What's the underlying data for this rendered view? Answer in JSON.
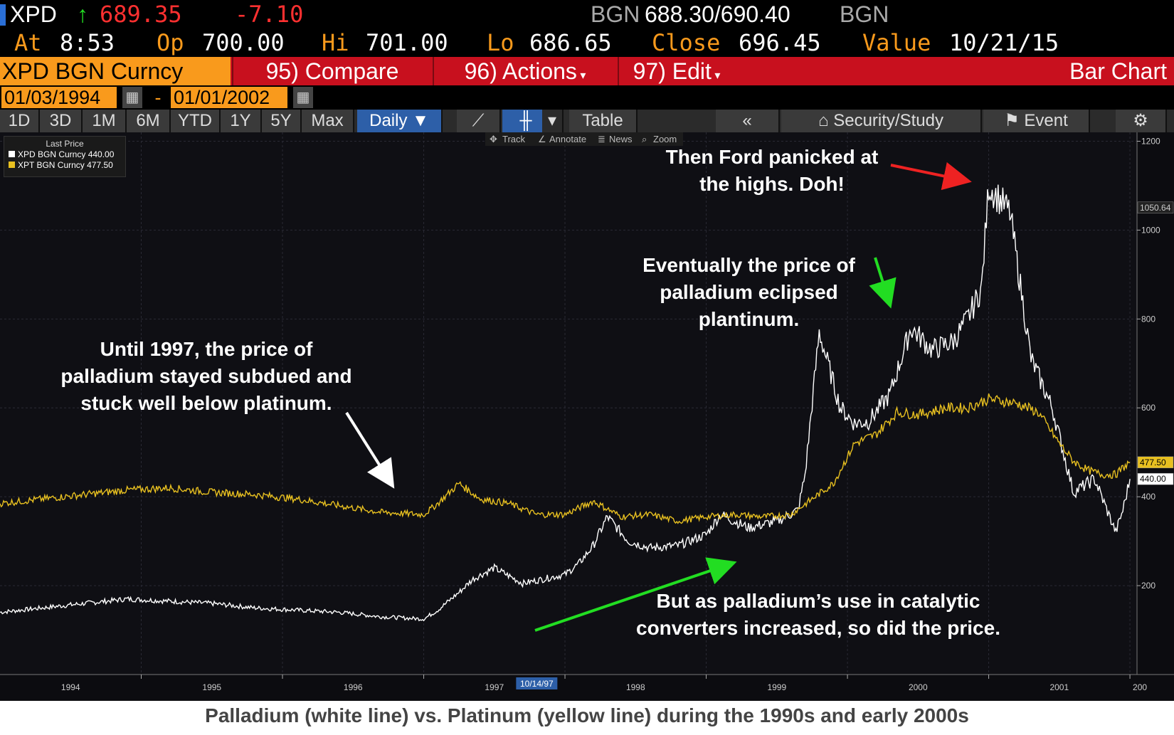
{
  "header": {
    "ticker": "XPD",
    "last_price": "689.35",
    "change": "-7.10",
    "bgn_left": "BGN",
    "bid_ask": "688.30/690.40",
    "bgn_right": "BGN",
    "at_label": "At",
    "at_value": "8:53",
    "op_label": "Op",
    "op_value": "700.00",
    "hi_label": "Hi",
    "hi_value": "701.00",
    "lo_label": "Lo",
    "lo_value": "686.65",
    "close_label": "Close",
    "close_value": "696.45",
    "value_label": "Value",
    "value_date": "10/21/15"
  },
  "toolbar": {
    "security": "XPD BGN Curncy",
    "compare": "95) Compare",
    "actions": "96) Actions",
    "edit": "97) Edit",
    "chart_type": "Bar Chart",
    "start_date": "01/03/1994",
    "date_sep": "-",
    "end_date": "01/01/2002",
    "ranges": [
      "1D",
      "3D",
      "1M",
      "6M",
      "YTD",
      "1Y",
      "5Y",
      "Max"
    ],
    "period": "Daily",
    "table": "Table",
    "security_study": "Security/Study",
    "event": "Event",
    "subtools": [
      "Track",
      "Annotate",
      "News",
      "Zoom"
    ]
  },
  "legend": {
    "title": "Last Price",
    "items": [
      {
        "label": "XPD BGN Curncy 440.00",
        "color": "#ffffff"
      },
      {
        "label": "XPT BGN Curncy 477.50",
        "color": "#e8c020"
      }
    ]
  },
  "annotations": {
    "subdued": "Until 1997, the price of palladium stayed subdued and stuck well below platinum.",
    "catalytic": "But as palladium’s use in catalytic converters increased, so did the price.",
    "eclipsed": "Eventually the price of palladium eclipsed plantinum.",
    "ford": "Then Ford panicked at the highs.  Doh!"
  },
  "caption": "Palladium (white line) vs. Platinum (yellow line) during the 1990s and early 2000s",
  "colors": {
    "palladium": "#ffffff",
    "platinum": "#e8c020",
    "arrow_white": "#ffffff",
    "arrow_green": "#22dd22",
    "arrow_red": "#ee2222"
  },
  "chart_data": {
    "type": "line",
    "title": "",
    "xlabel": "",
    "ylabel": "",
    "xlim": [
      1994.0,
      2002.05
    ],
    "ylim": [
      0,
      1220
    ],
    "y_ticks": [
      200,
      400,
      600,
      800,
      1000,
      1200
    ],
    "x_tick_labels": [
      "1994",
      "1995",
      "1996",
      "1997",
      "1998",
      "1999",
      "2000",
      "2001",
      "200"
    ],
    "cursor_date": "10/14/97",
    "price_tags": [
      {
        "value": 1050.64,
        "label": "1050.64"
      },
      {
        "value": 477.5,
        "label": "477.50"
      },
      {
        "value": 440.0,
        "label": "440.00"
      }
    ],
    "series": [
      {
        "name": "XPD BGN Curncy",
        "x": [
          1994.0,
          1994.3,
          1994.6,
          1994.9,
          1995.2,
          1995.5,
          1995.8,
          1996.1,
          1996.4,
          1996.7,
          1997.0,
          1997.1,
          1997.25,
          1997.35,
          1997.5,
          1997.7,
          1997.85,
          1998.0,
          1998.1,
          1998.2,
          1998.3,
          1998.45,
          1998.6,
          1998.8,
          1999.0,
          1999.1,
          1999.3,
          1999.5,
          1999.65,
          1999.7,
          1999.8,
          1999.95,
          2000.05,
          2000.15,
          2000.3,
          2000.45,
          2000.6,
          2000.75,
          2000.85,
          2000.95,
          2001.0,
          2001.15,
          2001.3,
          2001.45,
          2001.6,
          2001.75,
          2001.9,
          2001.95,
          2002.0
        ],
        "values": [
          140,
          150,
          160,
          170,
          165,
          160,
          150,
          145,
          140,
          130,
          125,
          145,
          185,
          215,
          240,
          205,
          215,
          225,
          250,
          290,
          355,
          300,
          285,
          290,
          315,
          360,
          330,
          345,
          370,
          450,
          770,
          600,
          565,
          570,
          630,
          780,
          730,
          750,
          800,
          870,
          1100,
          1040,
          710,
          600,
          410,
          440,
          320,
          370,
          440
        ]
      },
      {
        "name": "XPT BGN Curncy",
        "x": [
          1994.0,
          1994.3,
          1994.6,
          1994.9,
          1995.2,
          1995.5,
          1995.8,
          1996.1,
          1996.4,
          1996.7,
          1997.0,
          1997.1,
          1997.25,
          1997.4,
          1997.6,
          1997.8,
          1998.0,
          1998.2,
          1998.4,
          1998.6,
          1998.8,
          1999.0,
          1999.2,
          1999.4,
          1999.6,
          1999.75,
          1999.9,
          2000.05,
          2000.2,
          2000.35,
          2000.5,
          2000.7,
          2000.85,
          2001.0,
          2001.2,
          2001.35,
          2001.5,
          2001.6,
          2001.7,
          2001.8,
          2001.9,
          2001.95,
          2002.0
        ],
        "values": [
          385,
          395,
          405,
          415,
          420,
          410,
          405,
          395,
          380,
          365,
          360,
          385,
          430,
          395,
          385,
          360,
          360,
          390,
          355,
          360,
          345,
          355,
          360,
          355,
          360,
          395,
          430,
          520,
          540,
          590,
          585,
          600,
          600,
          620,
          610,
          590,
          520,
          480,
          460,
          450,
          450,
          465,
          477.5
        ]
      }
    ]
  }
}
